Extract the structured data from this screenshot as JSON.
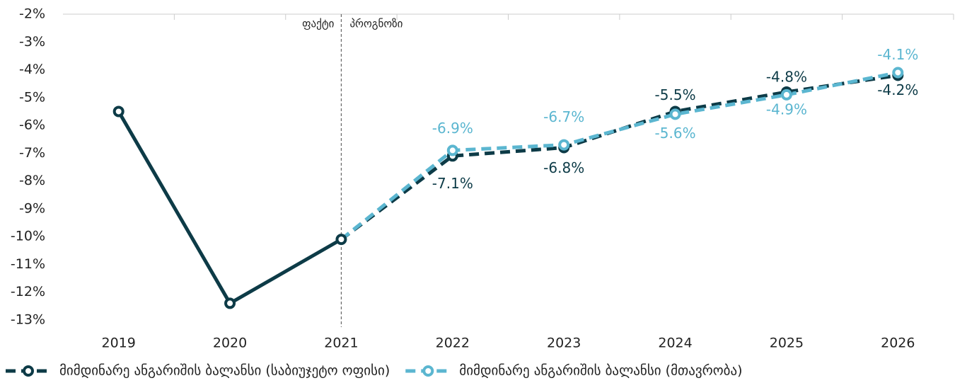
{
  "chart_data": {
    "type": "line",
    "categories": [
      "2019",
      "2020",
      "2021",
      "2022",
      "2023",
      "2024",
      "2025",
      "2026"
    ],
    "ylim": [
      -13,
      -2
    ],
    "yticks": [
      {
        "value": -2,
        "label": "-2%"
      },
      {
        "value": -3,
        "label": "-3%"
      },
      {
        "value": -4,
        "label": "-4%"
      },
      {
        "value": -5,
        "label": "-5%"
      },
      {
        "value": -6,
        "label": "-6%"
      },
      {
        "value": -7,
        "label": "-7%"
      },
      {
        "value": -8,
        "label": "-8%"
      },
      {
        "value": -9,
        "label": "-9%"
      },
      {
        "value": -10,
        "label": "-10%"
      },
      {
        "value": -11,
        "label": "-11%"
      },
      {
        "value": -12,
        "label": "-12%"
      },
      {
        "value": -13,
        "label": "-13%"
      }
    ],
    "grid": false,
    "divider": {
      "x": "2021",
      "left_label": "ფაქტი",
      "right_label": "პროგნოზი"
    },
    "series": [
      {
        "name": "მიმდინარე ანგარიშის ბალანსი (საბიუჯეტო ოფისი)",
        "color": "#0d3b47",
        "values": [
          -5.5,
          -12.4,
          -10.1,
          -7.1,
          -6.8,
          -5.5,
          -4.8,
          -4.2
        ],
        "value_labels": [
          null,
          null,
          null,
          "-7.1%",
          "-6.8%",
          "-5.5%",
          "-4.8%",
          "-4.2%"
        ]
      },
      {
        "name": "მიმდინარე ანგარიშის ბალანსი (მთავრობა)",
        "color": "#5bb6d0",
        "values": [
          null,
          null,
          -10.1,
          -6.9,
          -6.7,
          -5.6,
          -4.9,
          -4.1
        ],
        "value_labels": [
          null,
          null,
          null,
          "-6.9%",
          "-6.7%",
          "-5.6%",
          "-4.9%",
          "-4.1%"
        ]
      }
    ],
    "legend": "bottom"
  }
}
